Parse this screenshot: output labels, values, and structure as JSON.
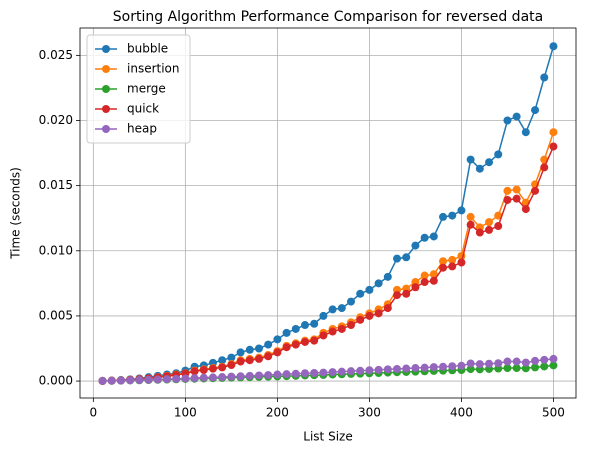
{
  "chart_data": {
    "type": "line",
    "title": "Sorting Algorithm Performance Comparison for reversed data",
    "x_label": "List Size",
    "y_label": "Time (seconds)",
    "x": [
      10,
      20,
      30,
      40,
      50,
      60,
      70,
      80,
      90,
      100,
      110,
      120,
      130,
      140,
      150,
      160,
      170,
      180,
      190,
      200,
      210,
      220,
      230,
      240,
      250,
      260,
      270,
      280,
      290,
      300,
      310,
      320,
      330,
      340,
      350,
      360,
      370,
      380,
      390,
      400,
      410,
      420,
      430,
      440,
      450,
      460,
      470,
      480,
      490,
      500
    ],
    "series": [
      {
        "name": "bubble",
        "color": "#1f77b4",
        "values": [
          1e-05,
          4e-05,
          8e-05,
          0.00013,
          0.0002,
          0.0003,
          0.0004,
          0.0005,
          0.0006,
          0.0008,
          0.0011,
          0.0012,
          0.0014,
          0.0016,
          0.0018,
          0.0022,
          0.0024,
          0.0025,
          0.0028,
          0.0032,
          0.0037,
          0.004,
          0.0043,
          0.0044,
          0.005,
          0.0055,
          0.0056,
          0.0061,
          0.0067,
          0.007,
          0.0075,
          0.008,
          0.0094,
          0.0095,
          0.0104,
          0.011,
          0.0111,
          0.0126,
          0.0127,
          0.0131,
          0.017,
          0.0163,
          0.0168,
          0.0174,
          0.02,
          0.0203,
          0.0191,
          0.0208,
          0.0233,
          0.0257
        ]
      },
      {
        "name": "insertion",
        "color": "#ff7f0e",
        "values": [
          1e-05,
          3e-05,
          6e-05,
          0.0001,
          0.00015,
          0.0002,
          0.0003,
          0.0004,
          0.0005,
          0.0006,
          0.0008,
          0.0009,
          0.001,
          0.0011,
          0.0013,
          0.0016,
          0.0017,
          0.0018,
          0.002,
          0.0023,
          0.0027,
          0.0029,
          0.0031,
          0.0032,
          0.0037,
          0.004,
          0.0042,
          0.0045,
          0.0049,
          0.0052,
          0.0055,
          0.0059,
          0.007,
          0.0071,
          0.0076,
          0.0081,
          0.0082,
          0.0092,
          0.0093,
          0.0096,
          0.0126,
          0.0118,
          0.0122,
          0.0127,
          0.0146,
          0.0147,
          0.0137,
          0.0151,
          0.017,
          0.0191
        ]
      },
      {
        "name": "merge",
        "color": "#2ca02c",
        "values": [
          1e-05,
          2e-05,
          3e-05,
          5e-05,
          6e-05,
          8e-05,
          0.0001,
          0.00012,
          0.00014,
          0.00016,
          0.00018,
          0.0002,
          0.00022,
          0.00024,
          0.00026,
          0.00028,
          0.0003,
          0.00032,
          0.00034,
          0.00036,
          0.00038,
          0.0004,
          0.00043,
          0.00045,
          0.00047,
          0.0005,
          0.00052,
          0.00055,
          0.00057,
          0.0006,
          0.00062,
          0.00065,
          0.00068,
          0.0007,
          0.00072,
          0.00075,
          0.00078,
          0.0008,
          0.00083,
          0.00085,
          0.00092,
          0.0009,
          0.00093,
          0.00096,
          0.001,
          0.001,
          0.00098,
          0.00105,
          0.00112,
          0.0012
        ]
      },
      {
        "name": "quick",
        "color": "#d62728",
        "values": [
          1e-05,
          3e-05,
          5e-05,
          9e-05,
          0.00014,
          0.0002,
          0.00028,
          0.00037,
          0.00047,
          0.00058,
          0.00075,
          0.00085,
          0.00095,
          0.00105,
          0.00123,
          0.0015,
          0.0016,
          0.0017,
          0.0019,
          0.0022,
          0.0026,
          0.0028,
          0.003,
          0.0031,
          0.0035,
          0.0038,
          0.004,
          0.0043,
          0.0047,
          0.005,
          0.0052,
          0.0056,
          0.0066,
          0.0067,
          0.0072,
          0.0076,
          0.0077,
          0.0087,
          0.0088,
          0.0091,
          0.012,
          0.0114,
          0.0116,
          0.0119,
          0.0139,
          0.014,
          0.0132,
          0.0146,
          0.0164,
          0.018
        ]
      },
      {
        "name": "heap",
        "color": "#9467bd",
        "values": [
          1e-05,
          2e-05,
          4e-05,
          6e-05,
          8e-05,
          0.0001,
          0.00012,
          0.00015,
          0.00017,
          0.0002,
          0.00023,
          0.00026,
          0.00028,
          0.00031,
          0.00034,
          0.00037,
          0.0004,
          0.00043,
          0.00046,
          0.0005,
          0.00053,
          0.00056,
          0.0006,
          0.00062,
          0.00065,
          0.00069,
          0.00072,
          0.00076,
          0.00079,
          0.00083,
          0.00086,
          0.0009,
          0.00093,
          0.00096,
          0.001,
          0.00103,
          0.00107,
          0.0011,
          0.00114,
          0.00118,
          0.00135,
          0.0013,
          0.00133,
          0.00137,
          0.0015,
          0.0015,
          0.00142,
          0.00155,
          0.00163,
          0.0017
        ]
      }
    ],
    "xlim": [
      -14.5,
      524.5
    ],
    "xticks": [
      0,
      100,
      200,
      300,
      400,
      500
    ],
    "ylim": [
      -0.0013,
      0.0271
    ],
    "yticks": [
      {
        "value": 0,
        "label": "0.000"
      },
      {
        "value": 0.005,
        "label": "0.005"
      },
      {
        "value": 0.01,
        "label": "0.010"
      },
      {
        "value": 0.015,
        "label": "0.015"
      },
      {
        "value": 0.02,
        "label": "0.020"
      },
      {
        "value": 0.025,
        "label": "0.025"
      }
    ],
    "grid": true,
    "legend": "upper left"
  }
}
